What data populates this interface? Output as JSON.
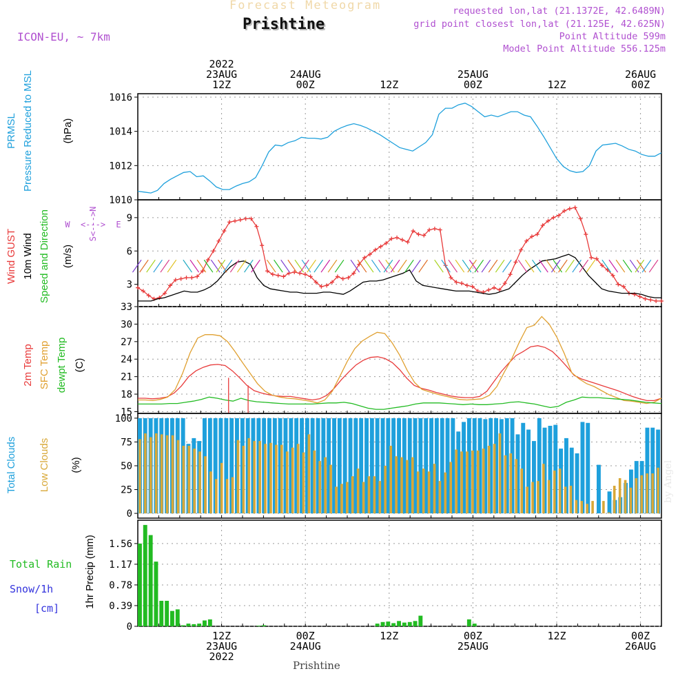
{
  "header": {
    "title_top": "Forecast Meteogram",
    "location": "Prishtine",
    "model": "ICON-EU, ~ 7km",
    "requested": "requested lon,lat (21.1372E, 42.6489N)",
    "closest": "grid point closest lon,lat (21.125E, 42.625N)",
    "point_alt": "Point Altitude 599m",
    "model_alt": "Model Point Altitude 556.125m",
    "footer_location": "Prishtine",
    "watermark": "by Angel"
  },
  "time_axis": {
    "top_labels": [
      {
        "hour": 12,
        "lines": [
          "2022",
          "23AUG",
          "12Z"
        ]
      },
      {
        "hour": 24,
        "lines": [
          "24AUG",
          "00Z"
        ]
      },
      {
        "hour": 36,
        "lines": [
          "12Z"
        ]
      },
      {
        "hour": 48,
        "lines": [
          "25AUG",
          "00Z"
        ]
      },
      {
        "hour": 60,
        "lines": [
          "12Z"
        ]
      },
      {
        "hour": 72,
        "lines": [
          "26AUG",
          "00Z"
        ]
      }
    ],
    "bottom_labels": [
      {
        "hour": 12,
        "lines": [
          "12Z",
          "23AUG",
          "2022"
        ]
      },
      {
        "hour": 24,
        "lines": [
          "00Z",
          "24AUG"
        ]
      },
      {
        "hour": 36,
        "lines": [
          "12Z"
        ]
      },
      {
        "hour": 48,
        "lines": [
          "00Z",
          "25AUG"
        ]
      },
      {
        "hour": 60,
        "lines": [
          "12Z"
        ]
      },
      {
        "hour": 72,
        "lines": [
          "00Z",
          "26AUG"
        ]
      }
    ]
  },
  "panel_labels": {
    "pressure": [
      {
        "text": "PRMSL",
        "color": "#1ea0dc"
      },
      {
        "text": "Pressure Reduced to MSL",
        "color": "#1ea0dc"
      },
      {
        "text": "(hPa)",
        "color": "#000000"
      }
    ],
    "wind": [
      {
        "text": "Wind GUST",
        "color": "#e83a3a"
      },
      {
        "text": "10m Wind",
        "color": "#000000"
      },
      {
        "text": "Speed and Direction",
        "color": "#22bb22"
      },
      {
        "text": "(m/s)",
        "color": "#000000"
      }
    ],
    "wind_compass": {
      "n": "N",
      "s": "S",
      "w": "W",
      "e": "E",
      "ns_line": "<--->",
      "we_line": "<--->"
    },
    "temp": [
      {
        "text": "2m Temp",
        "color": "#e83a3a"
      },
      {
        "text": "SFC Temp",
        "color": "#e0a030"
      },
      {
        "text": "dewpt Temp",
        "color": "#22bb22"
      },
      {
        "text": "(C)",
        "color": "#000000"
      }
    ],
    "clouds": [
      {
        "text": "Total Clouds",
        "color": "#1ea0dc"
      },
      {
        "text": "Low Clouds",
        "color": "#d8a838"
      },
      {
        "text": "(%)",
        "color": "#000000"
      }
    ],
    "precip_left": [
      {
        "text": "Total  Rain",
        "color": "#22bb22"
      },
      {
        "text": "Snow/1h",
        "color": "#3333dd"
      },
      {
        "text": "[cm]",
        "color": "#3333dd"
      }
    ],
    "precip_axis": "1hr Precip (mm)"
  },
  "chart_data": [
    {
      "type": "line",
      "name": "pressure",
      "x_hours_start": 0,
      "x_hours_end": 75,
      "ylim": [
        1010,
        1016.2
      ],
      "yticks": [
        "1010",
        "1012",
        "1014",
        "1016"
      ],
      "series": [
        {
          "name": "PRMSL",
          "color": "#1ea0dc",
          "values": [
            1010.5,
            1010.45,
            1010.4,
            1010.55,
            1010.95,
            1011.2,
            1011.4,
            1011.6,
            1011.65,
            1011.35,
            1011.4,
            1011.1,
            1010.75,
            1010.6,
            1010.6,
            1010.8,
            1010.95,
            1011.05,
            1011.3,
            1012.0,
            1012.8,
            1013.2,
            1013.15,
            1013.35,
            1013.45,
            1013.65,
            1013.6,
            1013.6,
            1013.55,
            1013.65,
            1014.0,
            1014.2,
            1014.35,
            1014.45,
            1014.35,
            1014.2,
            1014.0,
            1013.8,
            1013.55,
            1013.3,
            1013.05,
            1012.95,
            1012.85,
            1013.1,
            1013.35,
            1013.8,
            1015.0,
            1015.35,
            1015.35,
            1015.55,
            1015.65,
            1015.45,
            1015.15,
            1014.85,
            1014.95,
            1014.85,
            1015.0,
            1015.15,
            1015.15,
            1014.95,
            1014.85,
            1014.3,
            1013.7,
            1013.05,
            1012.4,
            1011.95,
            1011.7,
            1011.6,
            1011.65,
            1012.0,
            1012.85,
            1013.2,
            1013.25,
            1013.3,
            1013.15,
            1012.95,
            1012.85,
            1012.65,
            1012.55,
            1012.55,
            1012.75
          ]
        }
      ]
    },
    {
      "type": "line",
      "name": "wind",
      "x_hours_start": 0,
      "x_hours_end": 75,
      "ylim": [
        1,
        10.6
      ],
      "yticks": [
        "3",
        "6",
        "9"
      ],
      "series": [
        {
          "name": "Wind GUST",
          "color": "#e83a3a",
          "values": [
            2.7,
            2.4,
            2.0,
            1.7,
            1.8,
            2.2,
            2.9,
            3.4,
            3.5,
            3.6,
            3.6,
            3.7,
            4.2,
            5.2,
            6.0,
            6.9,
            7.8,
            8.6,
            8.7,
            8.8,
            8.9,
            8.9,
            8.2,
            6.5,
            4.2,
            3.9,
            3.8,
            3.7,
            4.0,
            4.1,
            4.0,
            3.9,
            3.7,
            3.2,
            2.8,
            2.9,
            3.2,
            3.7,
            3.5,
            3.6,
            4.0,
            4.8,
            5.4,
            5.7,
            6.1,
            6.4,
            6.7,
            7.1,
            7.2,
            7.0,
            6.8,
            7.8,
            7.5,
            7.4,
            7.9,
            8.0,
            7.9,
            4.7,
            3.6,
            3.2,
            3.1,
            2.9,
            2.8,
            2.4,
            2.3,
            2.5,
            2.7,
            2.5,
            3.1,
            3.9,
            5.0,
            6.1,
            6.9,
            7.3,
            7.5,
            8.3,
            8.7,
            9.0,
            9.2,
            9.6,
            9.8,
            9.9,
            8.9,
            7.5,
            5.4,
            5.3,
            4.7,
            4.3,
            3.8,
            3.0,
            2.8,
            2.2,
            2.1,
            1.9,
            1.7,
            1.6,
            1.5,
            1.5
          ]
        },
        {
          "name": "10m Wind",
          "color": "#000000",
          "values": [
            1.5,
            1.5,
            1.5,
            1.7,
            1.8,
            2.0,
            2.2,
            2.4,
            2.3,
            2.3,
            2.5,
            2.8,
            3.3,
            4.0,
            4.6,
            5.0,
            5.1,
            4.8,
            3.6,
            2.9,
            2.6,
            2.5,
            2.4,
            2.3,
            2.3,
            2.2,
            2.2,
            2.2,
            2.3,
            2.3,
            2.2,
            2.1,
            2.4,
            2.8,
            3.2,
            3.3,
            3.3,
            3.4,
            3.6,
            3.8,
            4.0,
            4.3,
            3.3,
            2.9,
            2.8,
            2.7,
            2.6,
            2.5,
            2.4,
            2.4,
            2.4,
            2.3,
            2.2,
            2.1,
            2.2,
            2.4,
            2.6,
            3.2,
            3.8,
            4.3,
            4.7,
            5.1,
            5.2,
            5.3,
            5.5,
            5.7,
            5.4,
            4.6,
            3.8,
            3.2,
            2.6,
            2.4,
            2.3,
            2.2,
            2.2,
            2.2,
            2.1,
            1.9,
            1.8,
            1.8
          ]
        }
      ]
    },
    {
      "type": "line",
      "name": "temperature",
      "x_hours_start": 0,
      "x_hours_end": 75,
      "ylim": [
        14.7,
        33
      ],
      "yticks": [
        "15",
        "18",
        "21",
        "24",
        "27",
        "30",
        "33"
      ],
      "series": [
        {
          "name": "2m Temp",
          "color": "#e83a3a",
          "values": [
            17.3,
            17.3,
            17.2,
            17.3,
            17.5,
            18.2,
            19.4,
            21.0,
            22.0,
            22.6,
            23.0,
            23.1,
            22.9,
            22.0,
            20.8,
            19.5,
            18.6,
            18.2,
            17.9,
            17.7,
            17.6,
            17.6,
            17.4,
            17.2,
            17.0,
            17.2,
            17.8,
            19.0,
            20.5,
            21.8,
            23.0,
            23.8,
            24.3,
            24.4,
            24.1,
            23.4,
            22.2,
            20.7,
            19.5,
            19.0,
            18.7,
            18.3,
            18.0,
            17.7,
            17.5,
            17.4,
            17.4,
            17.6,
            18.5,
            20.2,
            21.9,
            23.3,
            24.6,
            25.3,
            26.1,
            26.3,
            26.0,
            25.3,
            24.1,
            22.7,
            21.2,
            20.6,
            20.2,
            19.8,
            19.4,
            19.0,
            18.6,
            18.1,
            17.6,
            17.2,
            16.9,
            16.9,
            17.3
          ]
        },
        {
          "name": "SFC Temp",
          "color": "#e0a030",
          "values": [
            17.0,
            17.0,
            16.9,
            17.1,
            17.5,
            18.8,
            21.6,
            25.1,
            27.6,
            28.2,
            28.2,
            28.0,
            27.0,
            25.3,
            23.4,
            21.6,
            19.8,
            18.5,
            17.8,
            17.5,
            17.3,
            17.2,
            17.0,
            16.8,
            16.5,
            17.0,
            18.5,
            21.0,
            23.6,
            25.8,
            27.1,
            27.9,
            28.6,
            28.4,
            26.8,
            24.7,
            22.1,
            20.0,
            18.8,
            18.4,
            18.0,
            17.7,
            17.4,
            17.1,
            17.0,
            17.1,
            17.2,
            17.8,
            19.3,
            21.8,
            24.1,
            26.9,
            29.4,
            29.8,
            31.3,
            30.0,
            27.8,
            25.0,
            21.7,
            20.6,
            19.8,
            19.3,
            18.6,
            17.9,
            17.4,
            16.9,
            16.8,
            16.6,
            16.4,
            16.6,
            17.3
          ]
        },
        {
          "name": "dewpt Temp",
          "color": "#22bb22",
          "values": [
            16.3,
            16.3,
            16.3,
            16.3,
            16.4,
            16.4,
            16.6,
            16.8,
            17.1,
            17.5,
            17.3,
            17.0,
            16.8,
            17.3,
            16.9,
            16.7,
            16.6,
            16.5,
            16.4,
            16.3,
            16.3,
            16.3,
            16.3,
            16.4,
            16.5,
            16.5,
            16.6,
            16.4,
            16.0,
            15.6,
            15.4,
            15.4,
            15.6,
            15.8,
            16.0,
            16.3,
            16.5,
            16.5,
            16.5,
            16.4,
            16.3,
            16.2,
            16.3,
            16.2,
            16.2,
            16.3,
            16.4,
            16.6,
            16.7,
            16.5,
            16.3,
            16.0,
            15.7,
            15.9,
            16.6,
            17.0,
            17.5,
            17.4,
            17.4,
            17.3,
            17.2,
            17.1,
            17.0,
            16.8,
            16.6,
            16.5,
            16.4
          ]
        }
      ]
    },
    {
      "type": "bar",
      "name": "clouds",
      "x_hours_start": 0,
      "x_hours_end": 75,
      "ylim": [
        -5,
        105
      ],
      "yticks": [
        "0",
        "25",
        "50",
        "75",
        "100"
      ],
      "series": [
        {
          "name": "Total Clouds",
          "color": "#1ea0dc",
          "values": [
            100,
            100,
            100,
            100,
            100,
            100,
            100,
            100,
            100,
            73,
            79,
            76,
            100,
            100,
            100,
            100,
            100,
            100,
            100,
            100,
            100,
            100,
            100,
            100,
            100,
            100,
            100,
            100,
            100,
            100,
            100,
            100,
            100,
            100,
            100,
            100,
            100,
            100,
            100,
            100,
            100,
            100,
            100,
            100,
            100,
            100,
            100,
            100,
            100,
            100,
            100,
            100,
            100,
            100,
            100,
            100,
            100,
            100,
            100,
            86,
            96,
            100,
            100,
            100,
            99,
            100,
            100,
            99,
            100,
            100,
            83,
            95,
            88,
            76,
            100,
            90,
            92,
            93,
            68,
            79,
            69,
            63,
            96,
            95,
            0,
            51,
            0,
            23,
            14,
            17,
            32,
            46,
            55,
            55,
            90,
            90,
            88
          ]
        },
        {
          "name": "Low Clouds",
          "color": "#d8a838",
          "values": [
            78,
            84,
            80,
            84,
            83,
            82,
            82,
            77,
            71,
            71,
            68,
            65,
            60,
            44,
            36,
            53,
            36,
            38,
            77,
            71,
            79,
            76,
            76,
            73,
            74,
            72,
            72,
            65,
            69,
            73,
            64,
            83,
            66,
            55,
            59,
            51,
            28,
            31,
            33,
            39,
            47,
            33,
            39,
            39,
            34,
            50,
            71,
            60,
            59,
            56,
            59,
            44,
            47,
            44,
            52,
            34,
            43,
            54,
            67,
            65,
            65,
            66,
            66,
            68,
            71,
            73,
            84,
            61,
            63,
            57,
            47,
            28,
            33,
            34,
            52,
            35,
            45,
            47,
            28,
            29,
            14,
            13,
            10,
            13,
            0,
            13,
            1,
            29,
            37,
            35,
            27,
            37,
            40,
            42,
            42,
            48
          ]
        }
      ]
    },
    {
      "type": "bar",
      "name": "precipitation",
      "x_hours_start": 0,
      "x_hours_end": 75,
      "ylim": [
        0,
        2.0
      ],
      "yticks": [
        "0",
        "0.39",
        "0.78",
        "1.17",
        "1.56"
      ],
      "series": [
        {
          "name": "Total Rain",
          "color": "#22bb22",
          "values": [
            1.56,
            1.91,
            1.72,
            1.22,
            0.48,
            0.48,
            0.29,
            0.32,
            0.02,
            0.05,
            0.04,
            0.05,
            0.11,
            0.13,
            0,
            0,
            0,
            0,
            0,
            0,
            0,
            0,
            0.01,
            0.02,
            0,
            0,
            0,
            0,
            0,
            0,
            0,
            0,
            0,
            0,
            0,
            0,
            0,
            0,
            0,
            0,
            0,
            0,
            0,
            0,
            0.05,
            0.08,
            0.09,
            0.06,
            0.1,
            0.07,
            0.08,
            0.1,
            0.2,
            0,
            0,
            0,
            0,
            0,
            0,
            0,
            0,
            0.13,
            0.05,
            0,
            0,
            0,
            0,
            0,
            0,
            0,
            0,
            0,
            0,
            0,
            0,
            0,
            0,
            0,
            0,
            0,
            0,
            0,
            0,
            0,
            0,
            0,
            0,
            0,
            0,
            0,
            0,
            0,
            0,
            0,
            0,
            0,
            0
          ]
        }
      ]
    }
  ]
}
